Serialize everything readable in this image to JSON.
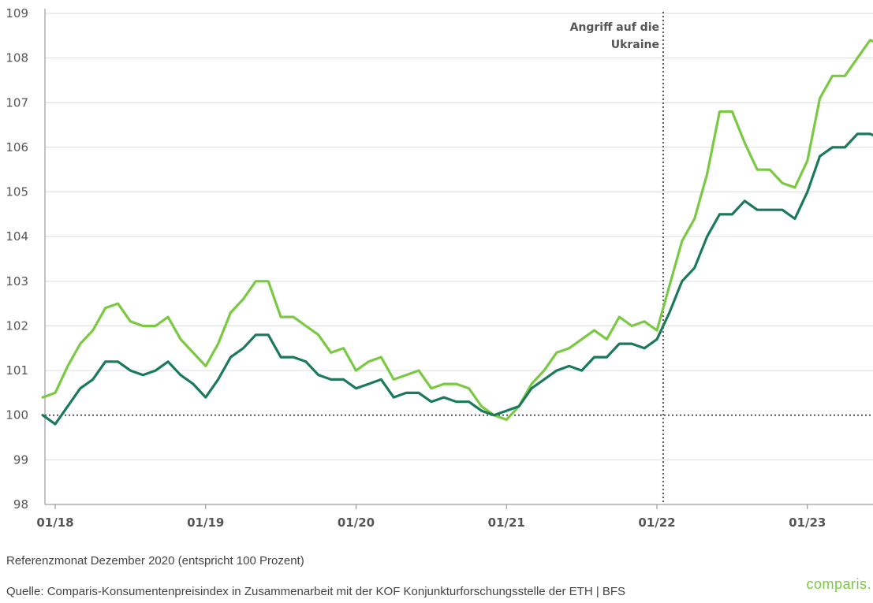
{
  "chart_data": {
    "type": "line",
    "ylim": [
      98,
      109
    ],
    "y_ticks": [
      98,
      99,
      100,
      101,
      102,
      103,
      104,
      105,
      106,
      107,
      108,
      109
    ],
    "x_start": "2018-01",
    "x_ticks": [
      {
        "date": "2018-01",
        "label": "01/18"
      },
      {
        "date": "2019-01",
        "label": "01/19"
      },
      {
        "date": "2020-01",
        "label": "01/20"
      },
      {
        "date": "2021-01",
        "label": "01/21"
      },
      {
        "date": "2022-01",
        "label": "01/22"
      },
      {
        "date": "2023-01",
        "label": "01/23"
      }
    ],
    "grid": "horizontal",
    "reference_line": 100,
    "event": {
      "date": "2022-02",
      "label_lines": [
        "Angriff auf die",
        "Ukraine"
      ]
    },
    "series": [
      {
        "color": "#7ac943",
        "values": [
          100.4,
          100.5,
          101.1,
          101.6,
          101.9,
          102.4,
          102.5,
          102.1,
          102.0,
          102.0,
          102.2,
          101.7,
          101.4,
          101.1,
          101.6,
          102.3,
          102.6,
          103.0,
          103.0,
          102.2,
          102.2,
          102.0,
          101.8,
          101.4,
          101.5,
          101.0,
          101.2,
          101.3,
          100.8,
          100.9,
          101.0,
          100.6,
          100.7,
          100.7,
          100.6,
          100.2,
          100.0,
          99.9,
          100.2,
          100.7,
          101.0,
          101.4,
          101.5,
          101.7,
          101.9,
          101.7,
          102.2,
          102.0,
          102.1,
          101.9,
          102.9,
          103.9,
          104.4,
          105.4,
          106.8,
          106.8,
          106.1,
          105.5,
          105.5,
          105.2,
          105.1,
          105.7,
          107.1,
          107.6,
          107.6,
          108.0,
          108.4,
          108.3
        ]
      },
      {
        "color": "#1a7a5a",
        "values": [
          100.0,
          99.8,
          100.2,
          100.6,
          100.8,
          101.2,
          101.2,
          101.0,
          100.9,
          101.0,
          101.2,
          100.9,
          100.7,
          100.4,
          100.8,
          101.3,
          101.5,
          101.8,
          101.8,
          101.3,
          101.3,
          101.2,
          100.9,
          100.8,
          100.8,
          100.6,
          100.7,
          100.8,
          100.4,
          100.5,
          100.5,
          100.3,
          100.4,
          100.3,
          100.3,
          100.1,
          100.0,
          100.1,
          100.2,
          100.6,
          100.8,
          101.0,
          101.1,
          101.0,
          101.3,
          101.3,
          101.6,
          101.6,
          101.5,
          101.7,
          102.3,
          103.0,
          103.3,
          104.0,
          104.5,
          104.5,
          104.8,
          104.6,
          104.6,
          104.6,
          104.4,
          105.0,
          105.8,
          106.0,
          106.0,
          106.3,
          106.3,
          106.2
        ]
      }
    ]
  },
  "footer": {
    "reference_note": "Referenzmonat Dezember 2020 (entspricht 100 Prozent)",
    "source": "Quelle: Comparis-Konsumentenpreisindex in Zusammenarbeit mit der KOF Konjunkturforschungsstelle der ETH | BFS",
    "logo_text": "comparis."
  }
}
